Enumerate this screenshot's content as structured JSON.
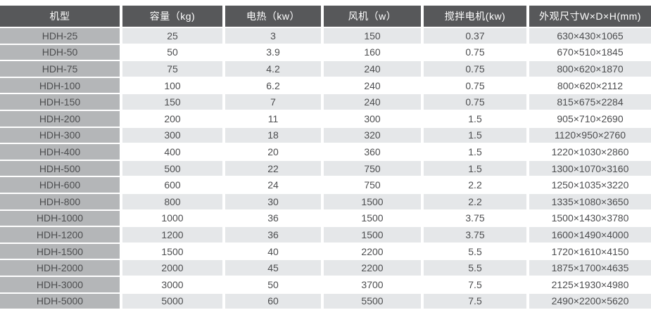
{
  "colors": {
    "header_bg": "#57585a",
    "header_text": "#ffffff",
    "model_col_bg": "#b4b6b8",
    "row_alt_bg": "#e5e7e9",
    "row_bg": "#ffffff",
    "text": "#4c4d4f"
  },
  "table": {
    "columns": [
      {
        "key": "model",
        "label": "机型"
      },
      {
        "key": "capacity",
        "label": "容量（kg)"
      },
      {
        "key": "heating",
        "label": "电热（kw）"
      },
      {
        "key": "fan",
        "label": "风机（w）"
      },
      {
        "key": "motor",
        "label": "搅拌电机(kw)"
      },
      {
        "key": "dimensions",
        "label": "外观尺寸W×D×H(mm)"
      }
    ],
    "rows": [
      {
        "model": "HDH-25",
        "capacity": "25",
        "heating": "3",
        "fan": "150",
        "motor": "0.37",
        "dimensions": "630×430×1065"
      },
      {
        "model": "HDH-50",
        "capacity": "50",
        "heating": "3.9",
        "fan": "160",
        "motor": "0.75",
        "dimensions": "670×510×1845"
      },
      {
        "model": "HDH-75",
        "capacity": "75",
        "heating": "4.2",
        "fan": "240",
        "motor": "0.75",
        "dimensions": "800×620×1870"
      },
      {
        "model": "HDH-100",
        "capacity": "100",
        "heating": "6.2",
        "fan": "240",
        "motor": "0.75",
        "dimensions": "800×620×2112"
      },
      {
        "model": "HDH-150",
        "capacity": "150",
        "heating": "7",
        "fan": "240",
        "motor": "0.75",
        "dimensions": "815×675×2284"
      },
      {
        "model": "HDH-200",
        "capacity": "200",
        "heating": "11",
        "fan": "300",
        "motor": "1.5",
        "dimensions": "905×710×2690"
      },
      {
        "model": "HDH-300",
        "capacity": "300",
        "heating": "18",
        "fan": "320",
        "motor": "1.5",
        "dimensions": "1120×950×2760"
      },
      {
        "model": "HDH-400",
        "capacity": "400",
        "heating": "20",
        "fan": "360",
        "motor": "1.5",
        "dimensions": "1220×1030×2860"
      },
      {
        "model": "HDH-500",
        "capacity": "500",
        "heating": "22",
        "fan": "750",
        "motor": "1.5",
        "dimensions": "1300×1070×3160"
      },
      {
        "model": "HDH-600",
        "capacity": "600",
        "heating": "24",
        "fan": "750",
        "motor": "2.2",
        "dimensions": "1250×1035×3220"
      },
      {
        "model": "HDH-800",
        "capacity": "800",
        "heating": "30",
        "fan": "1500",
        "motor": "2.2",
        "dimensions": "1335×1080×3650"
      },
      {
        "model": "HDH-1000",
        "capacity": "1000",
        "heating": "36",
        "fan": "1500",
        "motor": "3.75",
        "dimensions": "1500×1430×3780"
      },
      {
        "model": "HDH-1200",
        "capacity": "1200",
        "heating": "36",
        "fan": "1500",
        "motor": "3.75",
        "dimensions": "1600×1490×4000"
      },
      {
        "model": "HDH-1500",
        "capacity": "1500",
        "heating": "40",
        "fan": "2200",
        "motor": "5.5",
        "dimensions": "1720×1610×4150"
      },
      {
        "model": "HDH-2000",
        "capacity": "2000",
        "heating": "45",
        "fan": "2200",
        "motor": "5.5",
        "dimensions": "1875×1700×4635"
      },
      {
        "model": "HDH-3000",
        "capacity": "3000",
        "heating": "50",
        "fan": "3700",
        "motor": "7.5",
        "dimensions": "2125×1930×4980"
      },
      {
        "model": "HDH-5000",
        "capacity": "5000",
        "heating": "60",
        "fan": "5500",
        "motor": "7.5",
        "dimensions": "2490×2200×5620"
      }
    ]
  }
}
